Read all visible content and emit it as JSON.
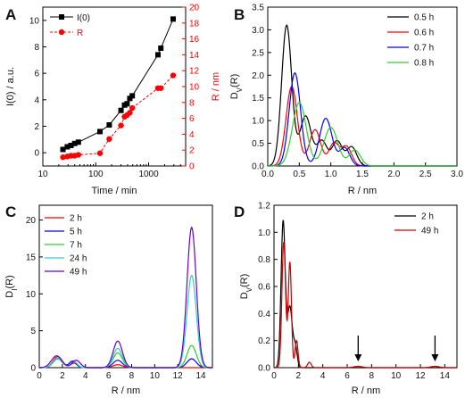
{
  "chart_data": [
    {
      "panel": "A",
      "type": "line",
      "xscale": "log",
      "xlabel": "Time / min",
      "ylabel": "I(0) / a.u.",
      "y2label": "R / nm",
      "xlim": [
        10,
        5000
      ],
      "ylim": [
        -1,
        11
      ],
      "y2lim": [
        0,
        20
      ],
      "x_ticks": [
        10,
        100,
        1000
      ],
      "y_ticks": [
        0,
        2,
        4,
        6,
        8,
        10
      ],
      "y2_ticks": [
        0,
        2,
        4,
        6,
        8,
        10,
        12,
        14,
        16,
        18,
        20
      ],
      "legend_position": "top-left",
      "series": [
        {
          "name": "I(0)",
          "axis": "left",
          "color": "#000000",
          "marker": "square",
          "x": [
            24,
            29,
            34,
            40,
            47,
            120,
            180,
            300,
            350,
            390,
            440,
            490,
            1500,
            1700,
            2900
          ],
          "y": [
            0.25,
            0.45,
            0.55,
            0.7,
            0.8,
            1.6,
            2.1,
            3.2,
            3.6,
            3.7,
            4.1,
            4.3,
            7.4,
            7.9,
            10.1
          ]
        },
        {
          "name": "R",
          "axis": "right",
          "color": "#ff0000",
          "marker": "circle",
          "dashed": true,
          "x": [
            24,
            29,
            34,
            40,
            47,
            120,
            180,
            300,
            350,
            390,
            440,
            490,
            1500,
            1700,
            2900
          ],
          "y": [
            1.1,
            1.2,
            1.3,
            1.3,
            1.4,
            1.6,
            3.4,
            5.1,
            6.2,
            6.4,
            6.7,
            7.3,
            9.8,
            9.8,
            11.4
          ]
        }
      ]
    },
    {
      "panel": "B",
      "type": "line",
      "xlabel": "R / nm",
      "ylabel": "D_V(R)",
      "xlim": [
        0,
        3
      ],
      "ylim": [
        0,
        3.5
      ],
      "x_ticks": [
        0.0,
        0.5,
        1.0,
        1.5,
        2.0,
        2.5,
        3.0
      ],
      "y_ticks": [
        0.0,
        0.5,
        1.0,
        1.5,
        2.0,
        2.5,
        3.0,
        3.5
      ],
      "legend_position": "top-right",
      "series": [
        {
          "name": "0.5 h",
          "color": "#000000",
          "peaks": [
            [
              0.3,
              3.1,
              0.08
            ],
            [
              0.6,
              1.1,
              0.09
            ],
            [
              0.86,
              0.55,
              0.08
            ],
            [
              1.1,
              0.55,
              0.08
            ],
            [
              1.33,
              0.42,
              0.08
            ]
          ]
        },
        {
          "name": "0.6 h",
          "color": "#ff0000",
          "peaks": [
            [
              0.38,
              1.75,
              0.09
            ],
            [
              0.75,
              0.8,
              0.09
            ],
            [
              1.05,
              0.5,
              0.08
            ],
            [
              1.25,
              0.42,
              0.08
            ]
          ]
        },
        {
          "name": "0.7 h",
          "color": "#0000ff",
          "peaks": [
            [
              0.43,
              2.05,
              0.09
            ],
            [
              0.92,
              1.05,
              0.1
            ],
            [
              1.22,
              0.4,
              0.08
            ]
          ]
        },
        {
          "name": "0.8 h",
          "color": "#33cc33",
          "peaks": [
            [
              0.5,
              1.4,
              0.11
            ],
            [
              1.0,
              0.85,
              0.11
            ],
            [
              1.38,
              0.35,
              0.09
            ]
          ]
        }
      ]
    },
    {
      "panel": "C",
      "type": "line",
      "xlabel": "R / nm",
      "ylabel": "D_I(R)",
      "xlim": [
        0,
        15
      ],
      "ylim": [
        0,
        22
      ],
      "x_ticks": [
        0,
        2,
        4,
        6,
        8,
        10,
        12,
        14
      ],
      "y_ticks": [
        0,
        5,
        10,
        15,
        20
      ],
      "legend_position": "top-left",
      "series": [
        {
          "name": "2 h",
          "color": "#ff0000",
          "peaks": [
            [
              1.6,
              1.5,
              0.4
            ],
            [
              3.0,
              0.6,
              0.3
            ],
            [
              6.8,
              0.4,
              0.4
            ]
          ]
        },
        {
          "name": "5 h",
          "color": "#0000ff",
          "peaks": [
            [
              1.6,
              1.2,
              0.4
            ],
            [
              2.9,
              0.9,
              0.3
            ],
            [
              6.8,
              1.0,
              0.4
            ],
            [
              13.2,
              1.2,
              0.4
            ]
          ]
        },
        {
          "name": "7 h",
          "color": "#33cc33",
          "peaks": [
            [
              1.6,
              1.2,
              0.4
            ],
            [
              3.0,
              0.8,
              0.3
            ],
            [
              6.8,
              2.0,
              0.4
            ],
            [
              13.2,
              3.0,
              0.4
            ]
          ]
        },
        {
          "name": "24 h",
          "color": "#33cccc",
          "peaks": [
            [
              1.6,
              1.3,
              0.4
            ],
            [
              3.0,
              0.8,
              0.3
            ],
            [
              6.8,
              2.6,
              0.4
            ],
            [
              13.2,
              12.5,
              0.4
            ]
          ]
        },
        {
          "name": "49 h",
          "color": "#6600cc",
          "peaks": [
            [
              1.5,
              1.6,
              0.45
            ],
            [
              3.2,
              1.0,
              0.35
            ],
            [
              6.8,
              3.6,
              0.4
            ],
            [
              13.2,
              19.0,
              0.4
            ]
          ]
        }
      ]
    },
    {
      "panel": "D",
      "type": "line",
      "xlabel": "R / nm",
      "ylabel": "D_V(R)",
      "xlim": [
        0,
        15
      ],
      "ylim": [
        0,
        1.2
      ],
      "x_ticks": [
        0,
        2,
        4,
        6,
        8,
        10,
        12,
        14
      ],
      "y_ticks": [
        0.0,
        0.2,
        0.4,
        0.6,
        0.8,
        1.0,
        1.2
      ],
      "legend_position": "top-right",
      "arrows_at_x": [
        6.9,
        13.2
      ],
      "series": [
        {
          "name": "2 h",
          "color": "#000000",
          "peaks": [
            [
              0.75,
              1.08,
              0.17
            ],
            [
              1.3,
              0.45,
              0.2
            ],
            [
              1.75,
              0.15,
              0.15
            ]
          ]
        },
        {
          "name": "49 h",
          "color": "#cc0000",
          "peaks": [
            [
              0.8,
              0.93,
              0.15
            ],
            [
              1.3,
              0.78,
              0.13
            ],
            [
              1.85,
              0.2,
              0.12
            ],
            [
              2.9,
              0.04,
              0.15
            ],
            [
              6.9,
              0.01,
              0.35
            ],
            [
              13.2,
              0.01,
              0.35
            ]
          ]
        }
      ]
    }
  ]
}
